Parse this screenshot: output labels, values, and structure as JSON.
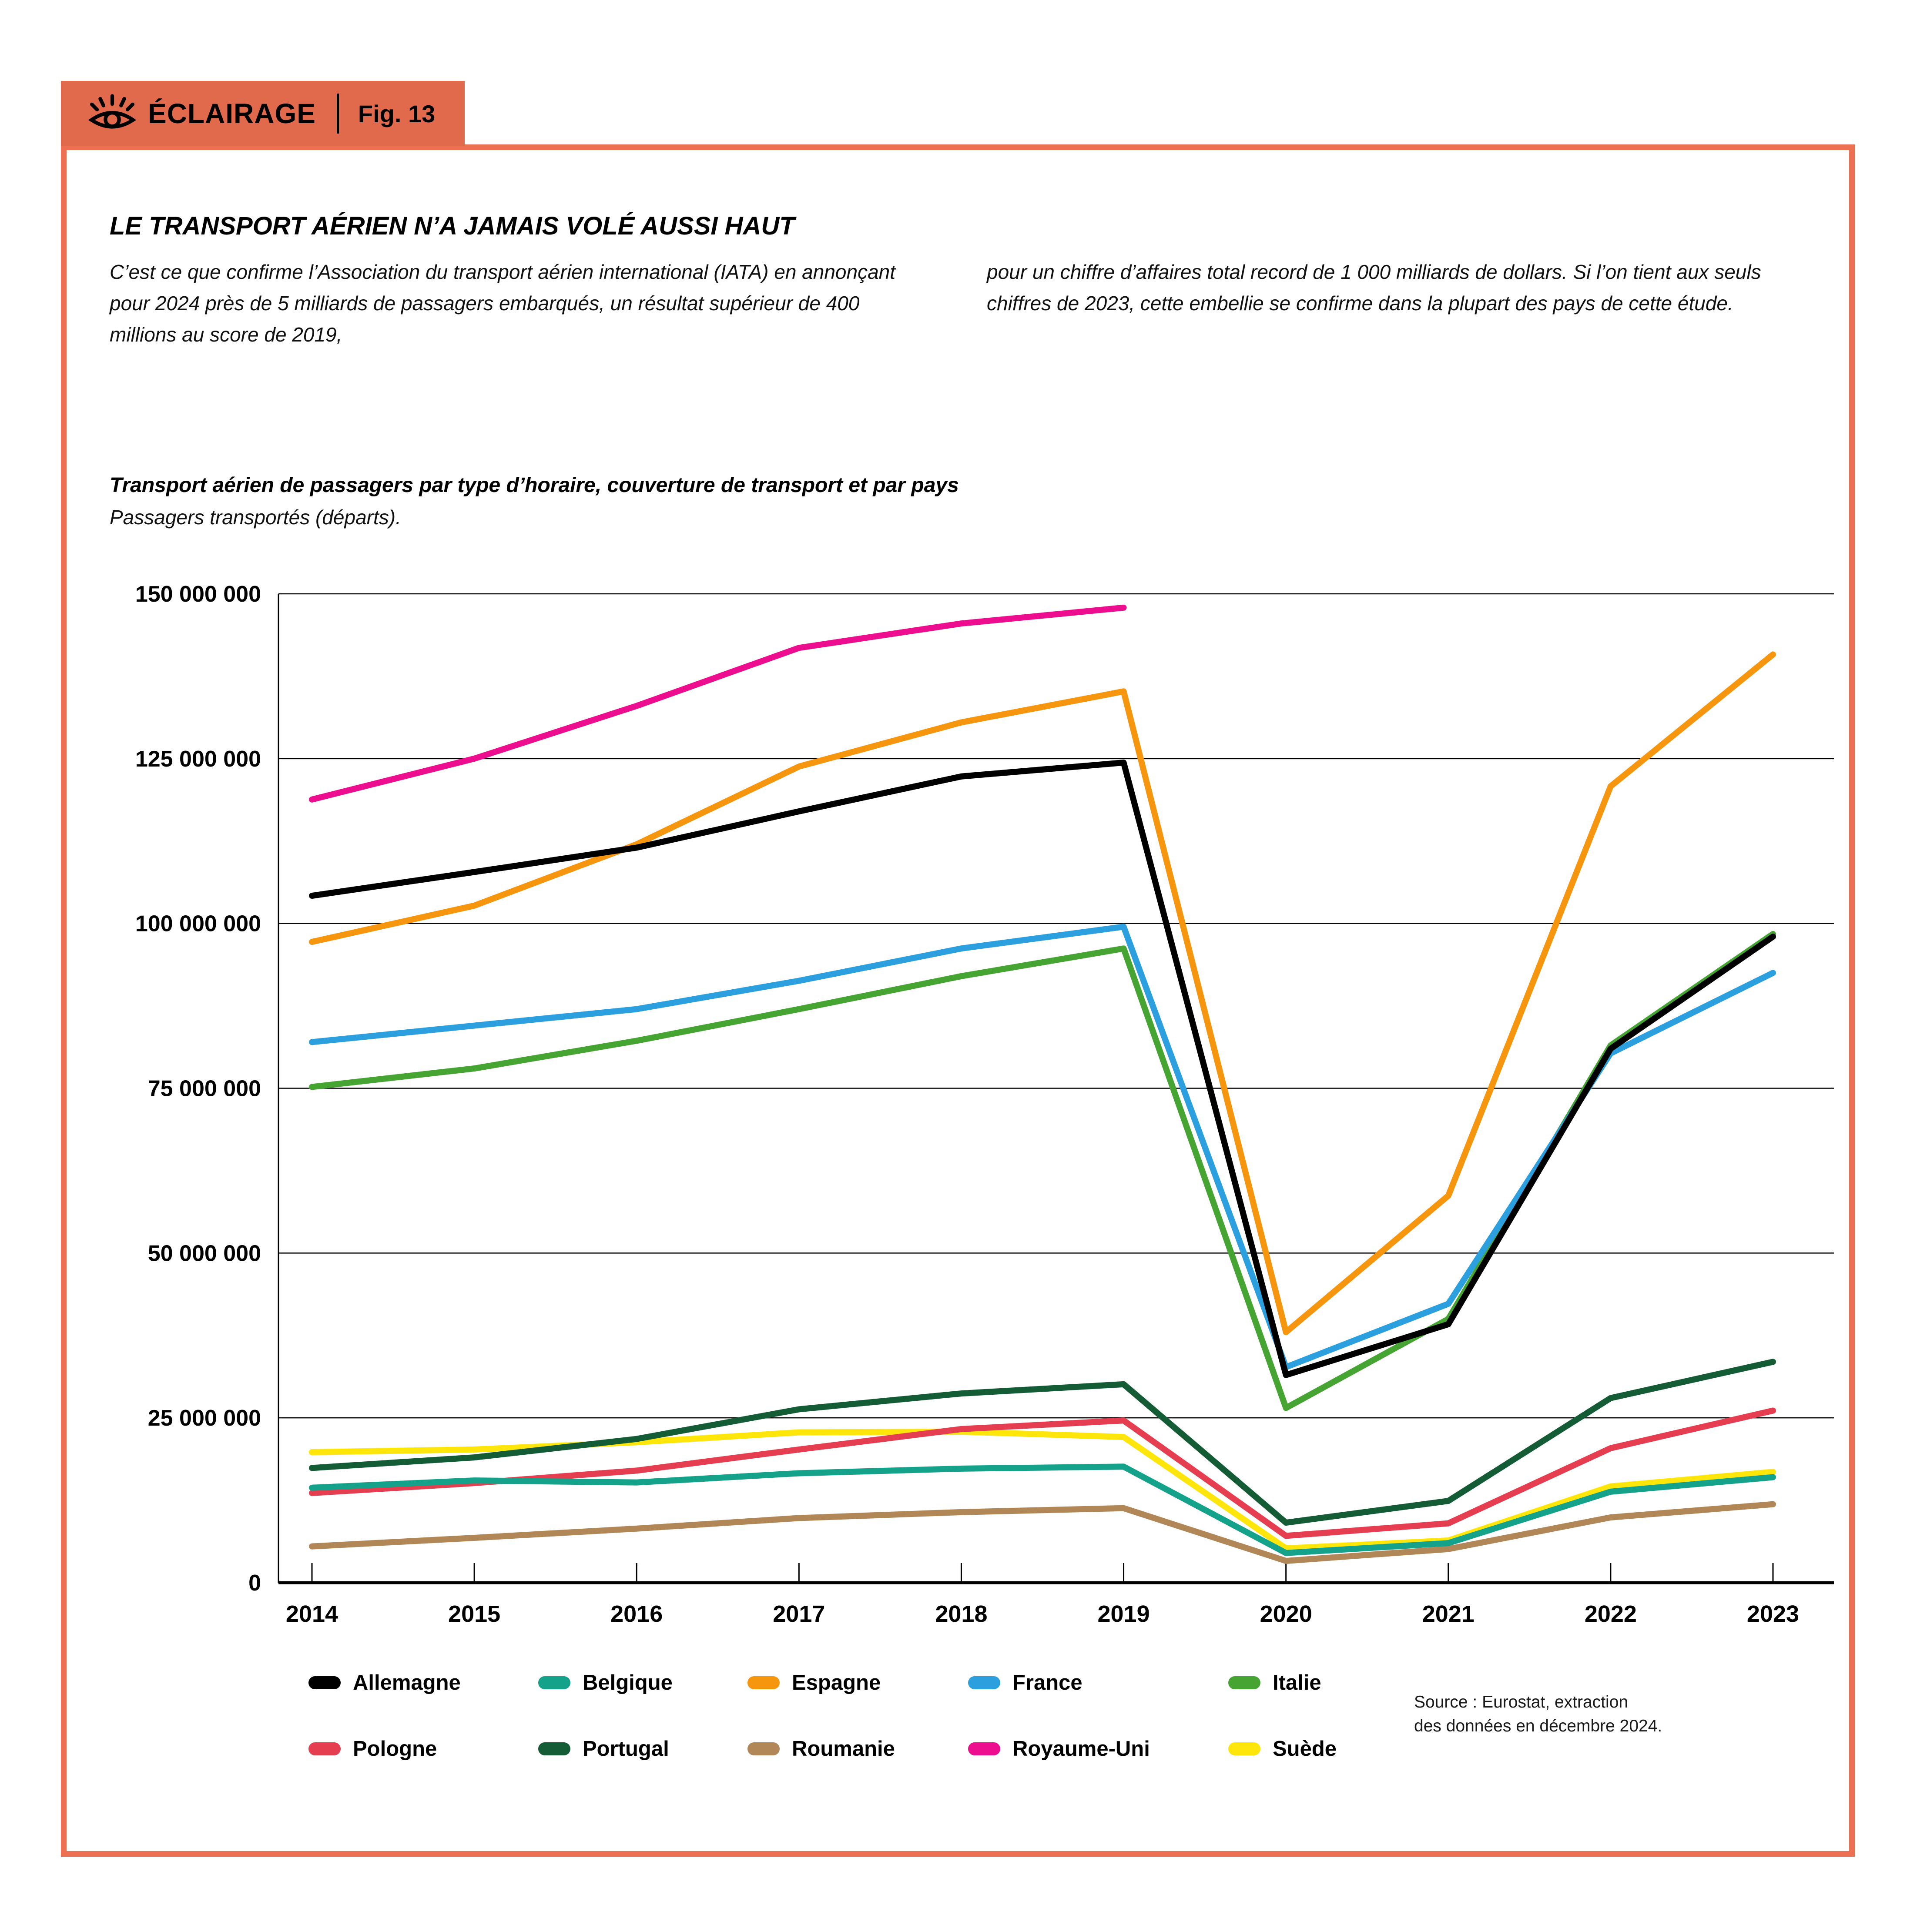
{
  "badge": {
    "label": "ÉCLAIRAGE",
    "fig": "Fig. 13",
    "background": "#E16A4C"
  },
  "frame_color": "#EC7051",
  "title": "LE TRANSPORT AÉRIEN N’A JAMAIS VOLÉ AUSSI HAUT",
  "intro": {
    "col1": "C’est ce que confirme l’Association du transport aérien international (IATA) en annonçant pour 2024 près de 5 milliards de passagers embarqués, un résultat supérieur de 400 millions au score de 2019,",
    "col2": "pour un chiffre d’affaires total record de 1 000 milliards de dollars. Si l’on tient aux seuls chiffres de 2023, cette embellie se confirme dans la plupart des pays de cette étude."
  },
  "source": {
    "line1": "Source : Eurostat, extraction",
    "line2": "des données en décembre 2024."
  },
  "chart_data": {
    "type": "line",
    "title": "Transport aérien de passagers par type d’horaire, couverture de transport et par pays",
    "subtitle": "Passagers transportés (départs).",
    "x": [
      2014,
      2015,
      2016,
      2017,
      2018,
      2019,
      2020,
      2021,
      2022,
      2023
    ],
    "ylim": [
      0,
      150000000
    ],
    "grid": true,
    "legend_position": "bottom",
    "yticks": [
      {
        "value": 0,
        "label": "0"
      },
      {
        "value": 25000000,
        "label": "25 000 000"
      },
      {
        "value": 50000000,
        "label": "50 000 000"
      },
      {
        "value": 75000000,
        "label": "75 000 000"
      },
      {
        "value": 100000000,
        "label": "100 000 000"
      },
      {
        "value": 125000000,
        "label": "125 000 000"
      },
      {
        "value": 150000000,
        "label": "150 000 000"
      }
    ],
    "series": [
      {
        "name": "Allemagne",
        "color": "#000000",
        "values": [
          104200000,
          107800000,
          111500000,
          117000000,
          122300000,
          124400000,
          31500000,
          39200000,
          81000000,
          98000000
        ]
      },
      {
        "name": "Belgique",
        "color": "#14A38A",
        "values": [
          14400000,
          15500000,
          15200000,
          16600000,
          17300000,
          17600000,
          4500000,
          6000000,
          13800000,
          16000000
        ]
      },
      {
        "name": "Espagne",
        "color": "#F6950E",
        "values": [
          97200000,
          102700000,
          112000000,
          123800000,
          130500000,
          135200000,
          38000000,
          58700000,
          120800000,
          140800000
        ]
      },
      {
        "name": "France",
        "color": "#2CA0DF",
        "values": [
          82000000,
          84500000,
          87000000,
          91300000,
          96200000,
          99500000,
          32700000,
          42300000,
          80300000,
          92500000
        ]
      },
      {
        "name": "Italie",
        "color": "#46A532",
        "values": [
          75200000,
          78000000,
          82200000,
          87000000,
          92000000,
          96200000,
          26500000,
          40000000,
          81500000,
          98400000
        ]
      },
      {
        "name": "Pologne",
        "color": "#E63E51",
        "values": [
          13600000,
          15100000,
          17000000,
          20200000,
          23300000,
          24600000,
          7100000,
          9000000,
          20400000,
          26100000
        ]
      },
      {
        "name": "Portugal",
        "color": "#145C36",
        "values": [
          17400000,
          19000000,
          21800000,
          26300000,
          28700000,
          30100000,
          9100000,
          12400000,
          28000000,
          33500000
        ]
      },
      {
        "name": "Roumanie",
        "color": "#B28757",
        "values": [
          5500000,
          6800000,
          8200000,
          9800000,
          10700000,
          11300000,
          3300000,
          5100000,
          9900000,
          11900000
        ]
      },
      {
        "name": "Royaume-Uni",
        "color": "#EC0E8F",
        "values": [
          118800000,
          125000000,
          133000000,
          141800000,
          145500000,
          147900000,
          null,
          null,
          null,
          null
        ]
      },
      {
        "name": "Suède",
        "color": "#FFE60A",
        "values": [
          19800000,
          20200000,
          21300000,
          22800000,
          22900000,
          22100000,
          5200000,
          6400000,
          14600000,
          16800000
        ]
      }
    ]
  }
}
